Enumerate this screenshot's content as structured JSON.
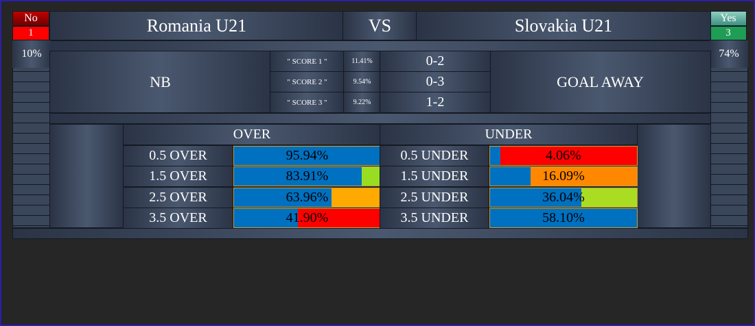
{
  "home": {
    "team": "Romania U21",
    "flag_label": "No",
    "flag_count": "1",
    "percent": "10%"
  },
  "vs": "VS",
  "away": {
    "team": "Slovakia U21",
    "flag_label": "Yes",
    "flag_count": "3",
    "percent": "74%"
  },
  "prediction": {
    "left": "NB",
    "right": "GOAL AWAY",
    "scores": [
      {
        "label": "\" SCORE 1 \"",
        "percent": "11.41%",
        "score": "0-2"
      },
      {
        "label": "\" SCORE 2 \"",
        "percent": "9.54%",
        "score": "0-3"
      },
      {
        "label": "\" SCORE 3 \"",
        "percent": "9.22%",
        "score": "1-2"
      }
    ]
  },
  "over_under": {
    "over_header": "OVER",
    "under_header": "UNDER",
    "bar_color": "#0070c0",
    "over": [
      {
        "label": "0.5 OVER",
        "value": 95.94,
        "value_label": "95.94%",
        "track_color": "#0070c0"
      },
      {
        "label": "1.5 OVER",
        "value": 83.91,
        "value_label": "83.91%",
        "track_color": "#99dd22"
      },
      {
        "label": "2.5 OVER",
        "value": 63.96,
        "value_label": "63.96%",
        "track_color": "#ffaa00"
      },
      {
        "label": "3.5 OVER",
        "value": 41.9,
        "value_label": "41.90%",
        "track_color": "#ff0000"
      }
    ],
    "under": [
      {
        "label": "0.5 UNDER",
        "value": 4.06,
        "value_label": "4.06%",
        "track_color": "#ff0000"
      },
      {
        "label": "1.5 UNDER",
        "value": 16.09,
        "value_label": "16.09%",
        "track_color": "#ff8800"
      },
      {
        "label": "2.5 UNDER",
        "value": 36.04,
        "value_label": "36.04%",
        "track_color": "#aadd22"
      },
      {
        "label": "3.5 UNDER",
        "value": 58.1,
        "value_label": "58.10%",
        "track_color": "#0070c0"
      }
    ]
  }
}
